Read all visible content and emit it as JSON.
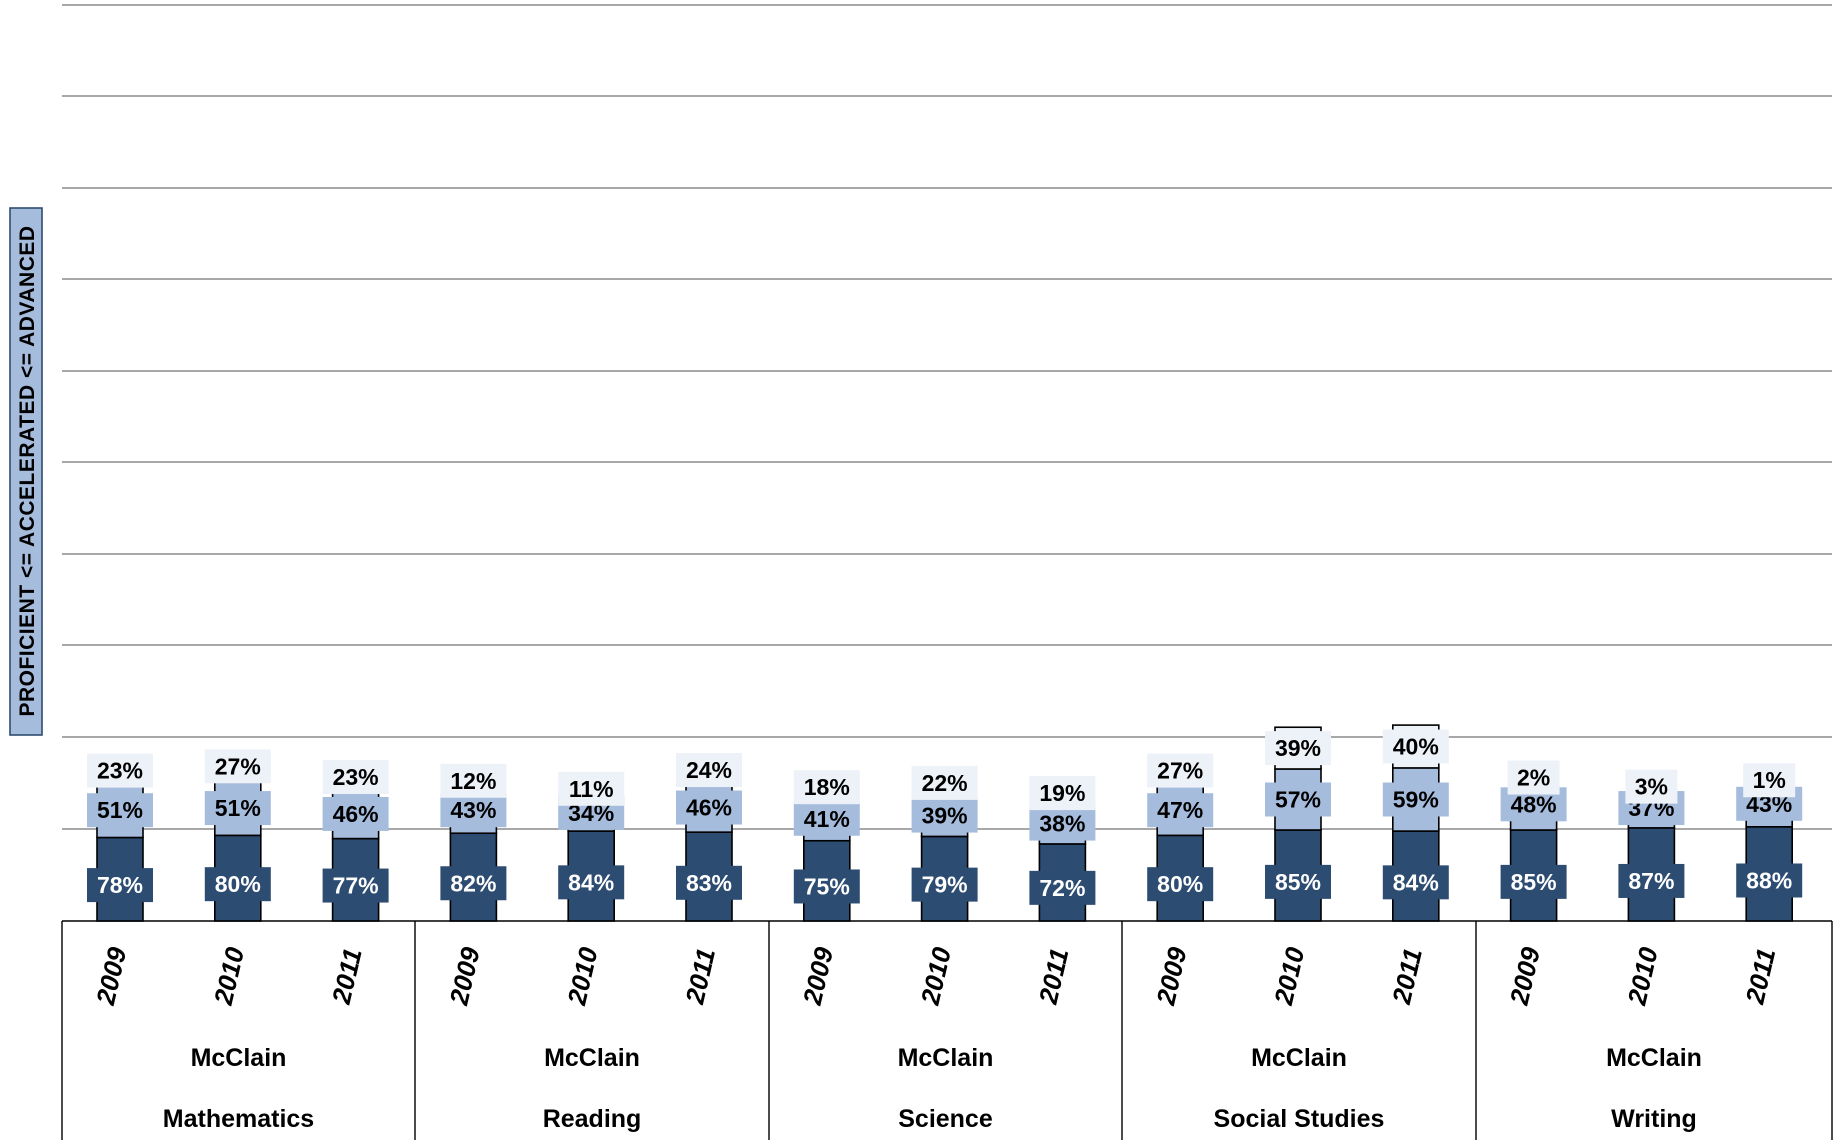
{
  "chart_data": {
    "type": "bar",
    "stacked": true,
    "ylabel": "PROFICIENT <= ACCELERATED <= ADVANCED",
    "grid": true,
    "groups": [
      {
        "line1": "McClain",
        "line2": "Mathematics",
        "years": [
          "2009",
          "2010",
          "2011"
        ]
      },
      {
        "line1": "McClain",
        "line2": "Reading",
        "years": [
          "2009",
          "2010",
          "2011"
        ]
      },
      {
        "line1": "McClain",
        "line2": "Science",
        "years": [
          "2009",
          "2010",
          "2011"
        ]
      },
      {
        "line1": "McClain",
        "line2": "Social Studies",
        "years": [
          "2009",
          "2010",
          "2011"
        ]
      },
      {
        "line1": "McClain",
        "line2": "Writing",
        "years": [
          "2009",
          "2010",
          "2011"
        ]
      }
    ],
    "series": [
      {
        "level": "proficient",
        "color": "#2d4c72",
        "label_bg": "#2d4c72",
        "label_color": "#ffffff",
        "values": [
          78,
          80,
          77,
          82,
          84,
          83,
          75,
          79,
          72,
          80,
          85,
          84,
          85,
          87,
          88
        ],
        "labels": [
          "78%",
          "80%",
          "77%",
          "82%",
          "84%",
          "83%",
          "75%",
          "79%",
          "72%",
          "80%",
          "85%",
          "84%",
          "85%",
          "87%",
          "88%"
        ]
      },
      {
        "level": "accelerated",
        "color": "#a6bcdd",
        "label_bg": "#a6bcdd",
        "label_color": "#000000",
        "values": [
          51,
          51,
          46,
          43,
          34,
          46,
          41,
          39,
          38,
          47,
          57,
          59,
          48,
          37,
          43
        ],
        "labels": [
          "51%",
          "51%",
          "46%",
          "43%",
          "34%",
          "46%",
          "41%",
          "39%",
          "38%",
          "47%",
          "57%",
          "59%",
          "48%",
          "37%",
          "43%"
        ]
      },
      {
        "level": "advanced",
        "color": "#edf1f8",
        "label_bg": "#edf1f8",
        "label_color": "#000000",
        "values": [
          23,
          27,
          23,
          12,
          11,
          24,
          18,
          22,
          19,
          27,
          39,
          40,
          2,
          3,
          1
        ],
        "labels": [
          "23%",
          "27%",
          "23%",
          "12%",
          "11%",
          "24%",
          "18%",
          "22%",
          "19%",
          "27%",
          "39%",
          "40%",
          "2%",
          "3%",
          "1%"
        ]
      }
    ]
  }
}
